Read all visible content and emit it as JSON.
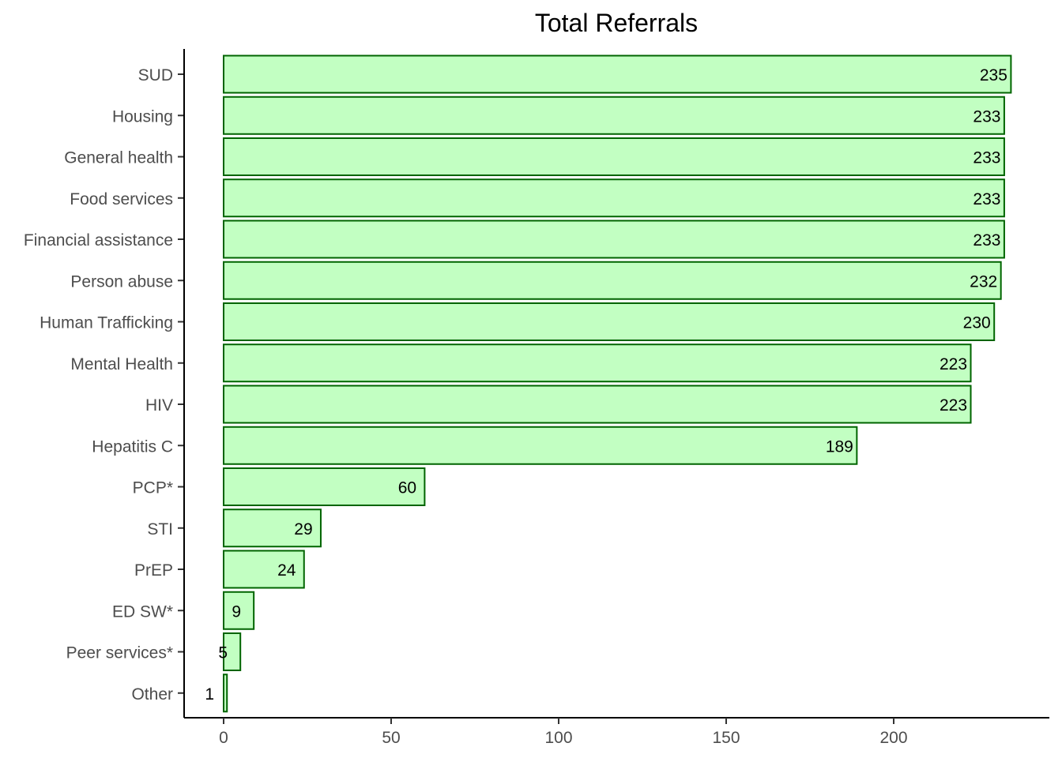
{
  "chart_data": {
    "type": "bar",
    "orientation": "horizontal",
    "title": "Total Referrals",
    "xlabel": "",
    "ylabel": "",
    "categories": [
      "SUD",
      "Housing",
      "General health",
      "Food services",
      "Financial assistance",
      "Person abuse",
      "Human Trafficking",
      "Mental Health",
      "HIV",
      "Hepatitis C",
      "PCP*",
      "STI",
      "PrEP",
      "ED SW*",
      "Peer services*",
      "Other"
    ],
    "values": [
      235,
      233,
      233,
      233,
      233,
      232,
      230,
      223,
      223,
      189,
      60,
      29,
      24,
      9,
      5,
      1
    ],
    "data_labels": [
      "235",
      "233",
      "233",
      "233",
      "233",
      "232",
      "230",
      "223",
      "223",
      "189",
      "60",
      "29",
      "24",
      "9",
      "5",
      "1"
    ],
    "xlim": [
      0,
      235
    ],
    "x_ticks": [
      0,
      50,
      100,
      150,
      200
    ],
    "x_tick_labels": [
      "0",
      "50",
      "100",
      "150",
      "200"
    ],
    "grid": false,
    "legend": "none",
    "colors": {
      "bar_fill": "#c2ffc2",
      "bar_stroke": "#006400",
      "axis": "#000000",
      "tick_text": "#4d4d4d",
      "label_text": "#000000"
    }
  }
}
